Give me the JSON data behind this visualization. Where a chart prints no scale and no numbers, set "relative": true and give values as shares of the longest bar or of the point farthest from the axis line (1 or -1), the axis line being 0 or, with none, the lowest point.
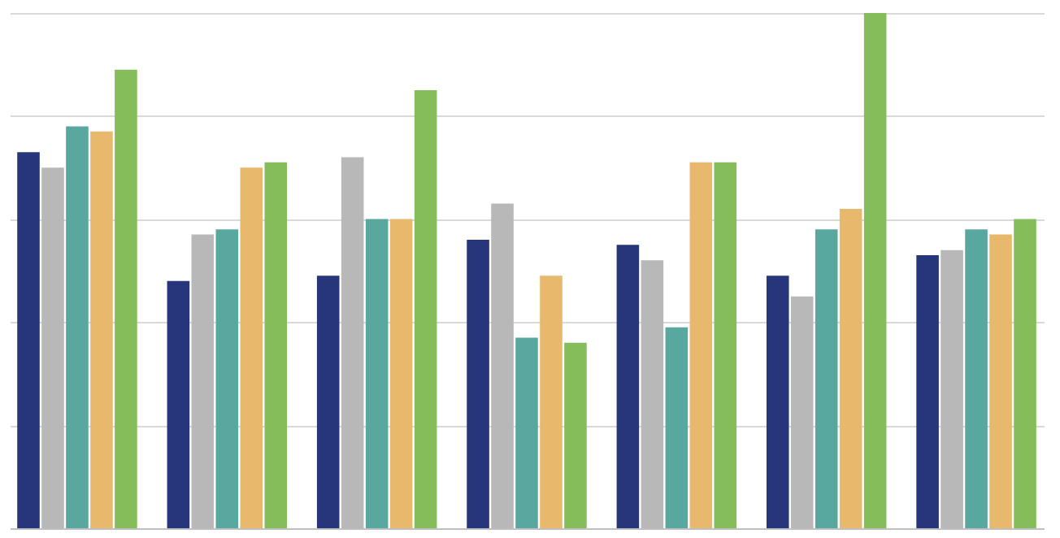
{
  "chart_data": {
    "type": "bar",
    "relative": true,
    "grid": "y",
    "legend": false,
    "categories": [
      null,
      null,
      null,
      null,
      null,
      null,
      null
    ],
    "series": [
      {
        "color": "#27367a",
        "values": [
          0.73,
          0.48,
          0.49,
          0.56,
          0.55,
          0.49,
          0.53
        ]
      },
      {
        "color": "#b8b8b8",
        "values": [
          0.7,
          0.57,
          0.72,
          0.63,
          0.52,
          0.45,
          0.54
        ]
      },
      {
        "color": "#58a89f",
        "values": [
          0.78,
          0.58,
          0.6,
          0.37,
          0.39,
          0.58,
          0.58
        ]
      },
      {
        "color": "#e8b86d",
        "values": [
          0.77,
          0.7,
          0.6,
          0.49,
          0.71,
          0.62,
          0.57
        ]
      },
      {
        "color": "#84bd5a",
        "values": [
          0.89,
          0.71,
          0.85,
          0.36,
          0.71,
          1,
          0.6
        ]
      }
    ]
  }
}
